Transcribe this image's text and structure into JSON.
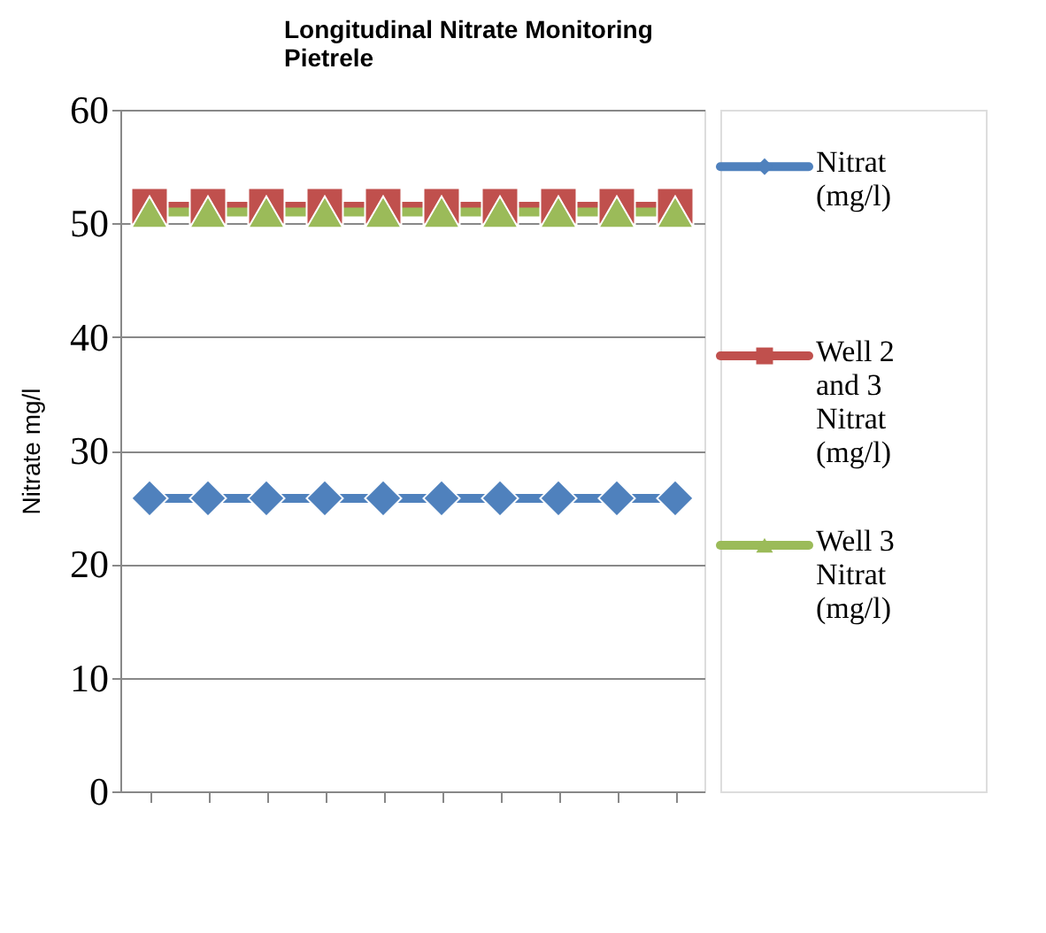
{
  "chart_data": {
    "type": "line",
    "title": [
      "Longitudinal Nitrate Monitoring",
      "Pietrele"
    ],
    "ylabel": "Nitrate mg/l",
    "categories": [
      null,
      null,
      null,
      null,
      null,
      null,
      null,
      null,
      null,
      null
    ],
    "series": [
      {
        "name": "Nitrat (mg/l)",
        "color": "#4f81bd",
        "marker": "diamond",
        "values": [
          25.8,
          25.8,
          25.8,
          25.8,
          25.8,
          25.8,
          25.8,
          25.8,
          25.8,
          25.8
        ]
      },
      {
        "name": "Well 2 and 3 Nitrat (mg/l)",
        "color": "#c0504d",
        "marker": "square",
        "values": [
          51.5,
          51.5,
          51.5,
          51.5,
          51.5,
          51.5,
          51.5,
          51.5,
          51.5,
          51.5
        ]
      },
      {
        "name": "Well 3 Nitrat (mg/l)",
        "color": "#9bbb59",
        "marker": "triangle",
        "values": [
          51,
          51,
          51,
          51,
          51,
          51,
          51,
          51,
          51,
          51
        ]
      }
    ],
    "ylim": [
      0,
      60
    ],
    "yticks": [
      0,
      10,
      20,
      30,
      40,
      50,
      60
    ],
    "grid": "y",
    "legend": "right",
    "line_style": "solid",
    "tick_labels": "y"
  }
}
